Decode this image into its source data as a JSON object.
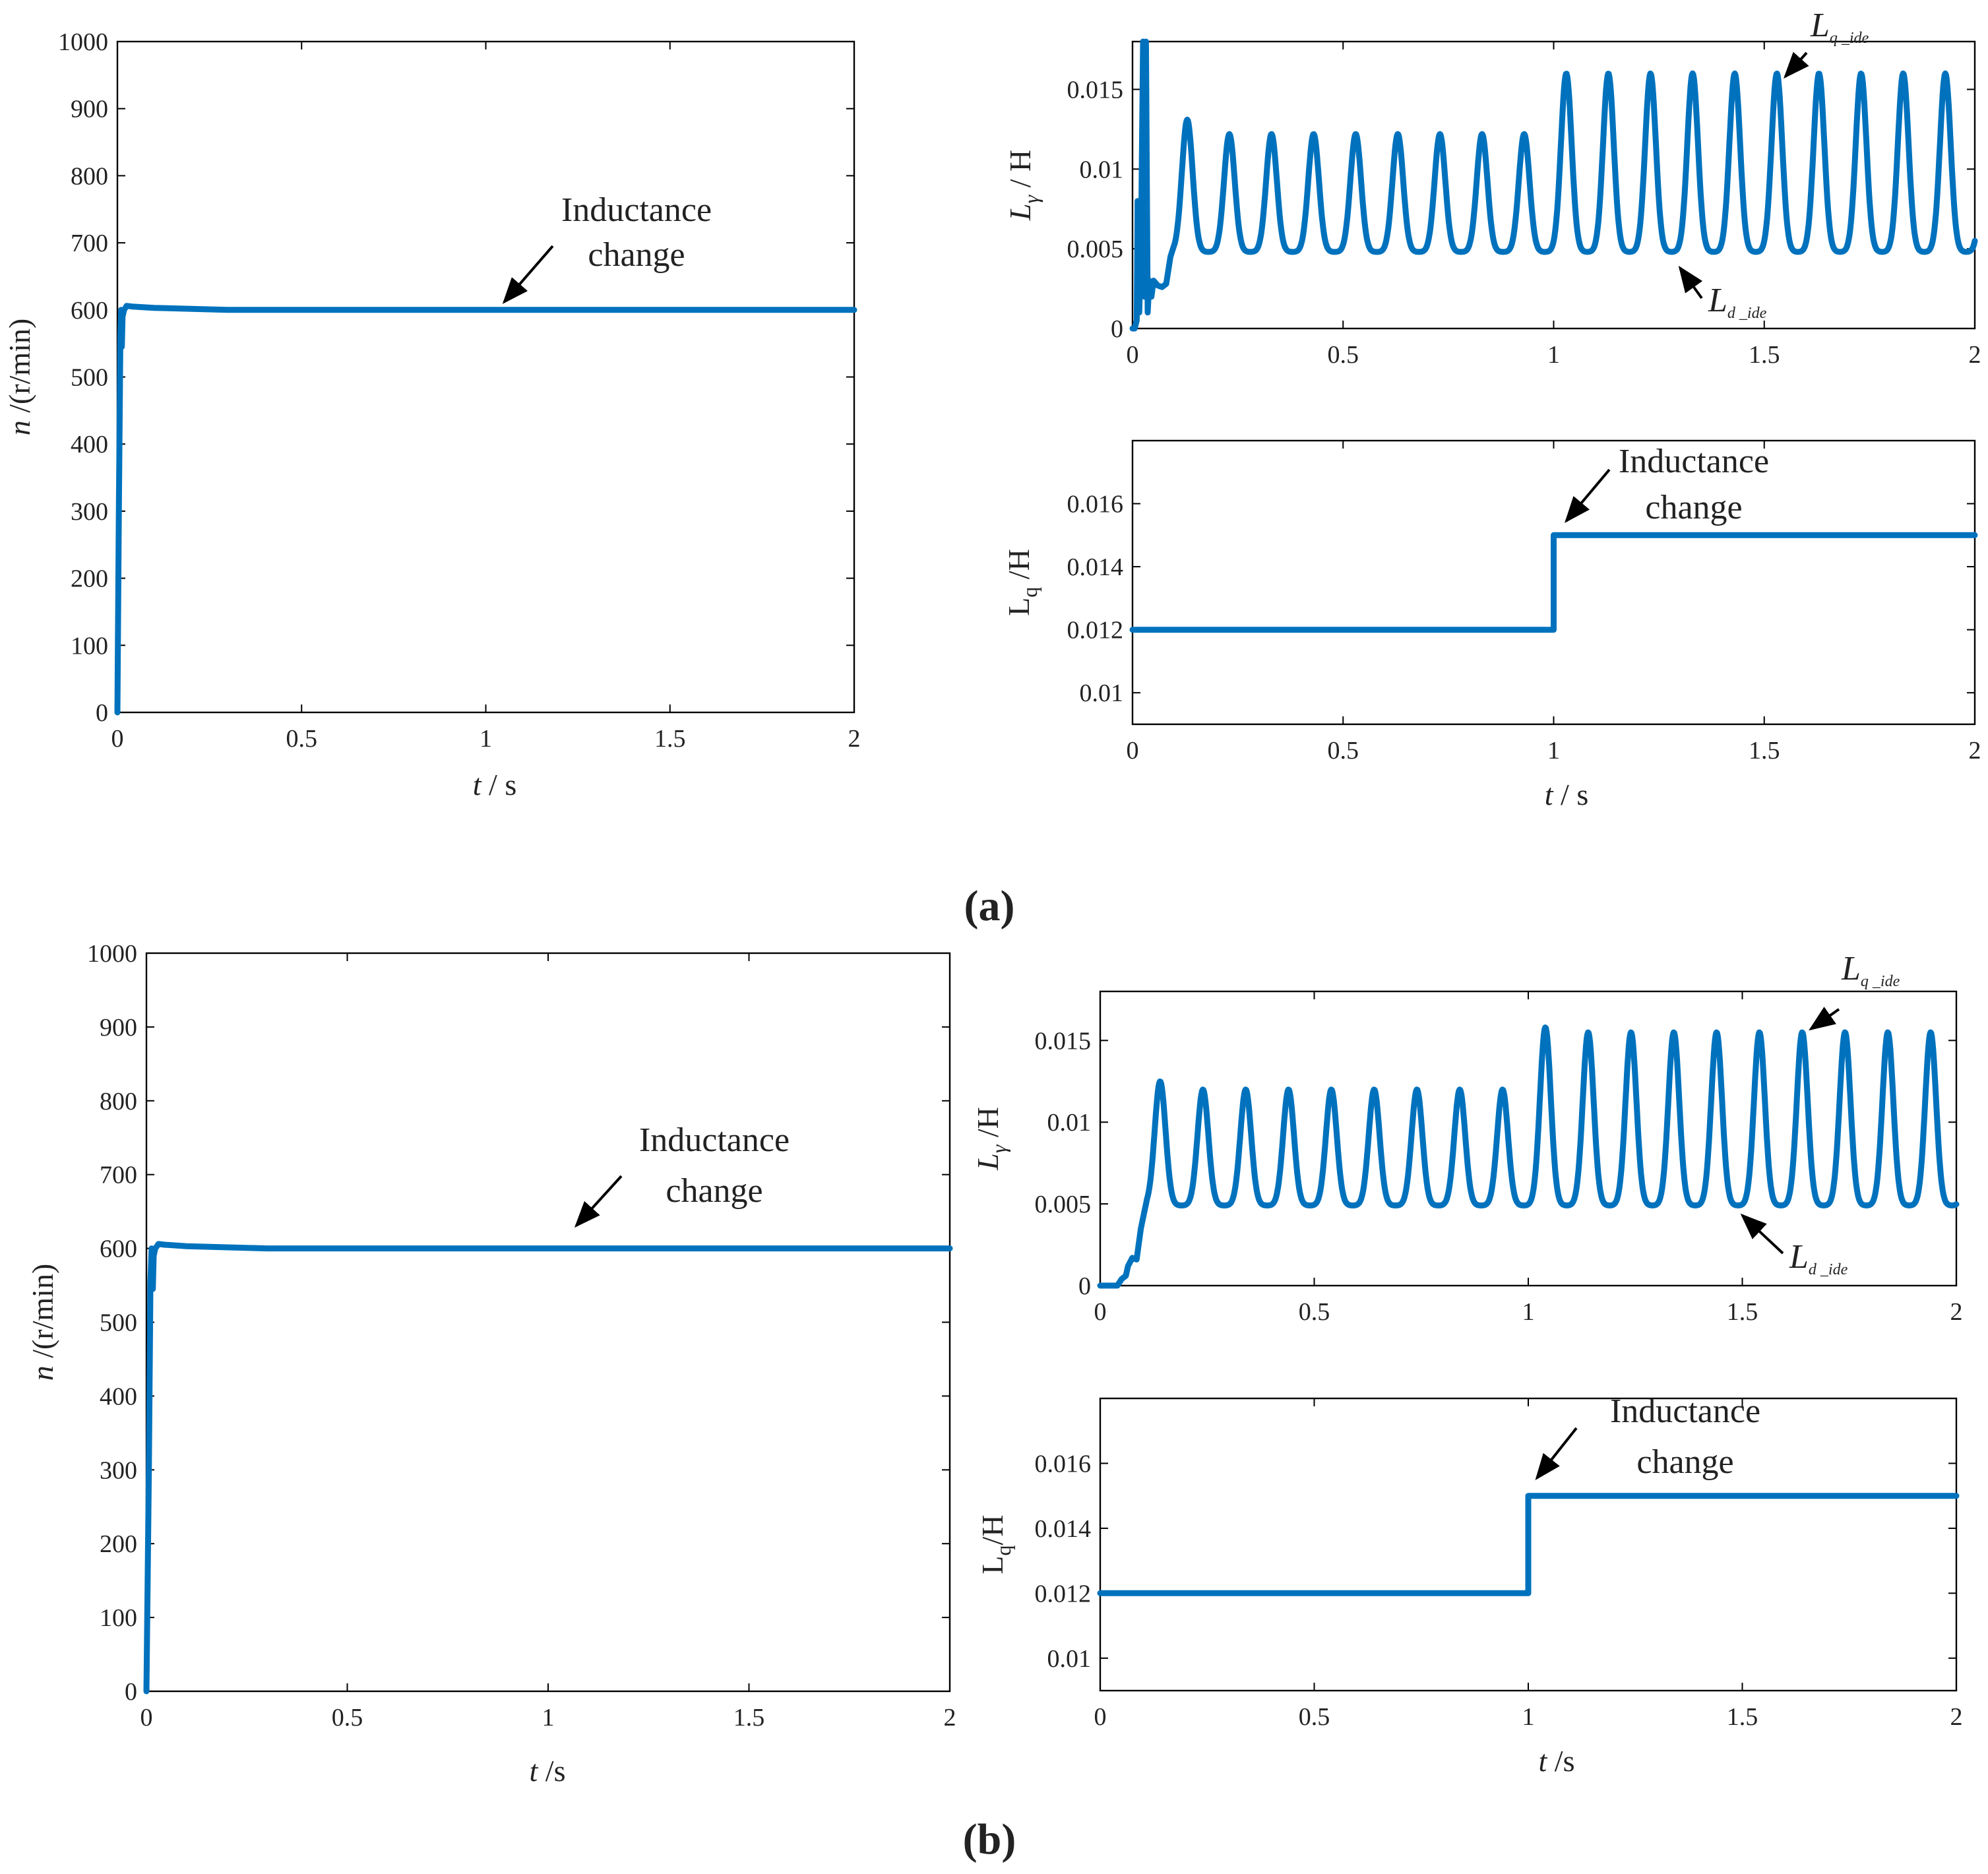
{
  "figure": {
    "label_a": "(a)",
    "label_b": "(b)",
    "colors": {
      "series": "#0072bd",
      "axes": "#000000",
      "text": "#222222"
    }
  },
  "chart_data": [
    {
      "id": "a-speed",
      "type": "line",
      "panel": "a",
      "xlabel_italic": "t",
      "xlabel_rest": " / s",
      "ylabel_italic": "n",
      "ylabel_rest": " /(r/min)",
      "xlim": [
        0,
        2
      ],
      "ylim": [
        0,
        1000
      ],
      "xticks": [
        0,
        0.5,
        1,
        1.5,
        2
      ],
      "xtick_labels": [
        "0",
        "0.5",
        "1",
        "1.5",
        "2"
      ],
      "yticks": [
        0,
        100,
        200,
        300,
        400,
        500,
        600,
        700,
        800,
        900,
        1000
      ],
      "ytick_labels": [
        "0",
        "100",
        "200",
        "300",
        "400",
        "500",
        "600",
        "700",
        "800",
        "900",
        "1000"
      ],
      "series": [
        {
          "name": "n",
          "x": [
            0,
            0.004,
            0.008,
            0.01,
            0.012,
            0.014,
            0.018,
            0.025,
            0.04,
            0.1,
            0.3,
            0.6,
            1.0,
            1.5,
            2.0
          ],
          "y": [
            0,
            300,
            560,
            600,
            545,
            590,
            600,
            606,
            605,
            603,
            600,
            600,
            600,
            600,
            600
          ]
        }
      ],
      "annotations": [
        {
          "line1": "Inductance",
          "line2": "change",
          "arrow_to": [
            1.05,
            600
          ]
        }
      ]
    },
    {
      "id": "a-lgamma",
      "type": "line",
      "panel": "a",
      "xlabel_italic": "",
      "xlabel_rest": "",
      "ylabel_main": "L",
      "ylabel_sub": "γ",
      "ylabel_rest": " / H",
      "xlim": [
        0,
        2
      ],
      "ylim": [
        0,
        0.018
      ],
      "xticks": [
        0,
        0.5,
        1,
        1.5,
        2
      ],
      "xtick_labels": [
        "0",
        "0.5",
        "1",
        "1.5",
        "2"
      ],
      "yticks": [
        0,
        0.005,
        0.01,
        0.015
      ],
      "ytick_labels": [
        "0",
        "0.005",
        "0.01",
        "0.015"
      ],
      "series_description": "oscillating identified inductance",
      "oscillation": {
        "period": 0.1,
        "first_peak": 0.13,
        "min": 0.0048,
        "peak_before": 0.0122,
        "peak_after": 0.016,
        "first_peak_value": 0.0131,
        "change_time": 1.0
      },
      "startup": {
        "x": [
          0,
          0.005,
          0.01,
          0.012,
          0.016,
          0.02,
          0.025,
          0.028,
          0.032,
          0.036,
          0.04,
          0.045,
          0.05,
          0.06,
          0.07,
          0.08,
          0.09
        ],
        "y": [
          0,
          0,
          0.0005,
          0.008,
          0.001,
          0.005,
          0.018,
          0.002,
          0.018,
          0.001,
          0.003,
          0.002,
          0.003,
          0.0027,
          0.0026,
          0.0028,
          0.0045
        ]
      },
      "annotations": [
        {
          "main": "L",
          "sub": "q _ide",
          "arrow_to": [
            1.55,
            0.0158
          ]
        },
        {
          "main": "L",
          "sub": "d _ide",
          "arrow_to": [
            1.3,
            0.0038
          ]
        }
      ]
    },
    {
      "id": "a-lq",
      "type": "line",
      "panel": "a",
      "xlabel_italic": "t",
      "xlabel_rest": " / s",
      "ylabel_main": "L",
      "ylabel_sub": "q",
      "ylabel_rest": " /H",
      "xlim": [
        0,
        2
      ],
      "ylim": [
        0.009,
        0.018
      ],
      "xticks": [
        0,
        0.5,
        1,
        1.5,
        2
      ],
      "xtick_labels": [
        "0",
        "0.5",
        "1",
        "1.5",
        "2"
      ],
      "yticks": [
        0.01,
        0.012,
        0.014,
        0.016
      ],
      "ytick_labels": [
        "0.01",
        "0.012",
        "0.014",
        "0.016"
      ],
      "series": [
        {
          "name": "Lq",
          "x": [
            0,
            1,
            1,
            2
          ],
          "y": [
            0.012,
            0.012,
            0.015,
            0.015
          ]
        }
      ],
      "annotations": [
        {
          "line1": "Inductance",
          "line2": "change",
          "arrow_to": [
            1.03,
            0.0152
          ]
        }
      ]
    },
    {
      "id": "b-speed",
      "type": "line",
      "panel": "b",
      "xlabel_italic": "t",
      "xlabel_rest": " /s",
      "ylabel_italic": "n",
      "ylabel_rest": " /(r/min)",
      "xlim": [
        0,
        2
      ],
      "ylim": [
        0,
        1000
      ],
      "xticks": [
        0,
        0.5,
        1,
        1.5,
        2
      ],
      "xtick_labels": [
        "0",
        "0.5",
        "1",
        "1.5",
        "2"
      ],
      "yticks": [
        0,
        100,
        200,
        300,
        400,
        500,
        600,
        700,
        800,
        900,
        1000
      ],
      "ytick_labels": [
        "0",
        "100",
        "200",
        "300",
        "400",
        "500",
        "600",
        "700",
        "800",
        "900",
        "1000"
      ],
      "series": [
        {
          "name": "n",
          "x": [
            0,
            0.006,
            0.01,
            0.013,
            0.016,
            0.018,
            0.022,
            0.03,
            0.045,
            0.1,
            0.3,
            0.6,
            1.0,
            1.5,
            2.0
          ],
          "y": [
            0,
            300,
            555,
            600,
            545,
            590,
            600,
            606,
            605,
            603,
            600,
            600,
            600,
            600,
            600
          ]
        }
      ],
      "annotations": [
        {
          "line1": "Inductance",
          "line2": "change",
          "arrow_to": [
            1.07,
            620
          ]
        }
      ]
    },
    {
      "id": "b-lgamma",
      "type": "line",
      "panel": "b",
      "xlabel_italic": "",
      "xlabel_rest": "",
      "ylabel_main": "L",
      "ylabel_sub": "γ",
      "ylabel_rest": " /H",
      "xlim": [
        0,
        2
      ],
      "ylim": [
        0,
        0.018
      ],
      "xticks": [
        0,
        0.5,
        1,
        1.5,
        2
      ],
      "xtick_labels": [
        "0",
        "0.5",
        "1",
        "1.5",
        "2"
      ],
      "yticks": [
        0,
        0.005,
        0.01,
        0.015
      ],
      "ytick_labels": [
        "0",
        "0.005",
        "0.01",
        "0.015"
      ],
      "oscillation": {
        "period": 0.1,
        "first_peak": 0.14,
        "min": 0.0049,
        "peak_before": 0.012,
        "peak_after": 0.0155,
        "first_peak_value": 0.0125,
        "first_after_value": 0.0158,
        "change_time": 1.0
      },
      "startup": {
        "x": [
          0,
          0.04,
          0.05,
          0.06,
          0.065,
          0.075,
          0.085,
          0.095
        ],
        "y": [
          0,
          0,
          0.0004,
          0.0006,
          0.0012,
          0.0017,
          0.0016,
          0.0035
        ]
      },
      "annotations": [
        {
          "main": "L",
          "sub": "q _ide",
          "arrow_to": [
            1.66,
            0.0157
          ]
        },
        {
          "main": "L",
          "sub": "d _ide",
          "arrow_to": [
            1.5,
            0.0043
          ]
        }
      ]
    },
    {
      "id": "b-lq",
      "type": "line",
      "panel": "b",
      "xlabel_italic": "t",
      "xlabel_rest": " /s",
      "ylabel_main": "L",
      "ylabel_sub": "q",
      "ylabel_rest": "/H",
      "xlim": [
        0,
        2
      ],
      "ylim": [
        0.009,
        0.018
      ],
      "xticks": [
        0,
        0.5,
        1,
        1.5,
        2
      ],
      "xtick_labels": [
        "0",
        "0.5",
        "1",
        "1.5",
        "2"
      ],
      "yticks": [
        0.01,
        0.012,
        0.014,
        0.016
      ],
      "ytick_labels": [
        "0.01",
        "0.012",
        "0.014",
        "0.016"
      ],
      "series": [
        {
          "name": "Lq",
          "x": [
            0,
            1,
            1,
            2
          ],
          "y": [
            0.012,
            0.012,
            0.015,
            0.015
          ]
        }
      ],
      "annotations": [
        {
          "line1": "Inductance",
          "line2": "change",
          "arrow_to": [
            1.02,
            0.0153
          ]
        }
      ]
    }
  ]
}
